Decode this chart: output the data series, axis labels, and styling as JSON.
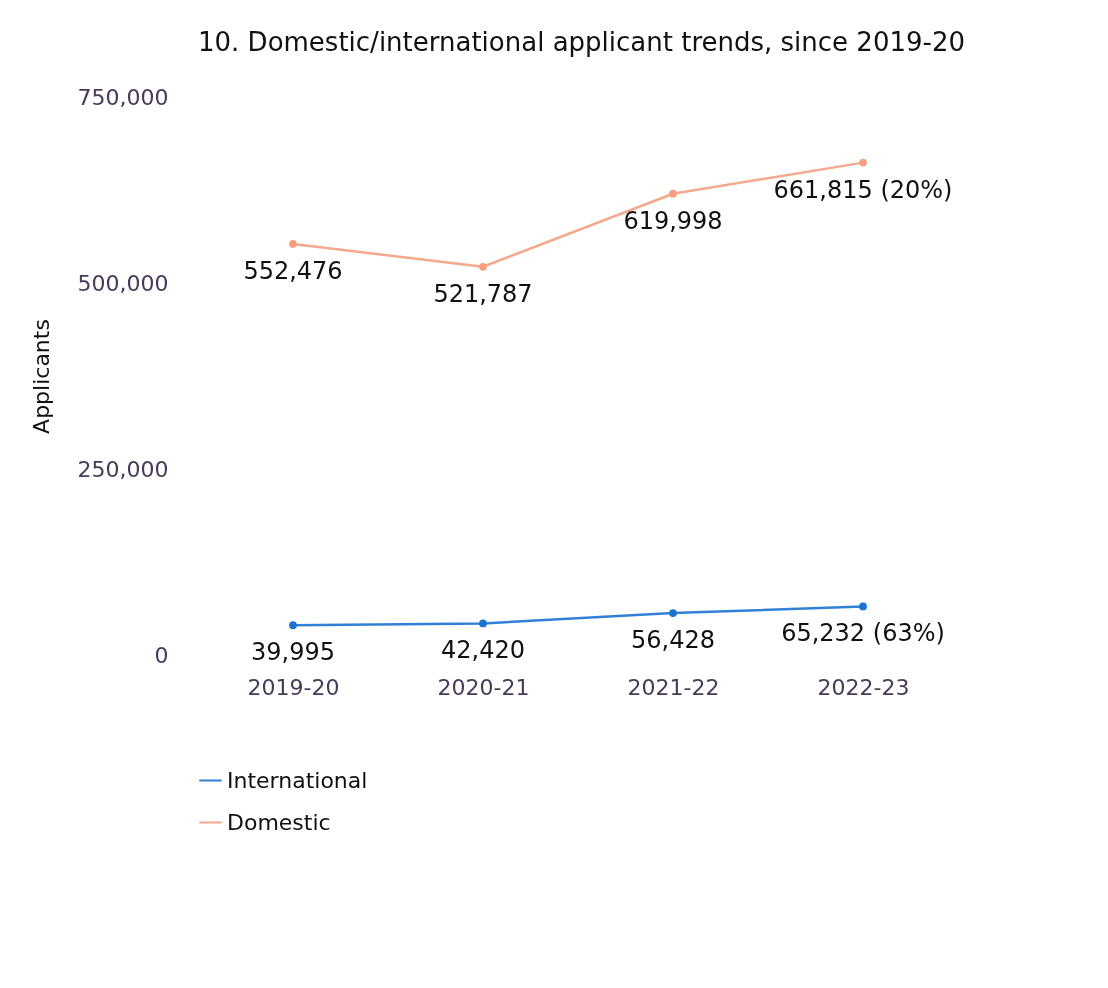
{
  "chart_data": {
    "type": "line",
    "title": "10. Domestic/international applicant trends, since 2019-20",
    "ylabel": "Applicants",
    "categories": [
      "2019-20",
      "2020-21",
      "2021-22",
      "2022-23"
    ],
    "series": [
      {
        "name": "International",
        "color": "#1a73d0",
        "values": [
          39995,
          42420,
          56428,
          65232
        ],
        "value_labels": [
          "39,995",
          "42,420",
          "56,428",
          "65,232 (63%)"
        ]
      },
      {
        "name": "Domestic",
        "color": "#f4a080",
        "values": [
          552476,
          521787,
          619998,
          661815
        ],
        "value_labels": [
          "552,476",
          "521,787",
          "619,998",
          "661,815 (20%)"
        ]
      }
    ],
    "ylim": [
      0,
      750000
    ],
    "yticks": [
      0,
      {
        "value": 250000,
        "label": "250,000"
      },
      {
        "value": 500000,
        "label": "500,000"
      },
      {
        "value": 750000,
        "label": "750,000"
      }
    ],
    "grid": false,
    "legend": "bottom",
    "marker": "circle"
  }
}
